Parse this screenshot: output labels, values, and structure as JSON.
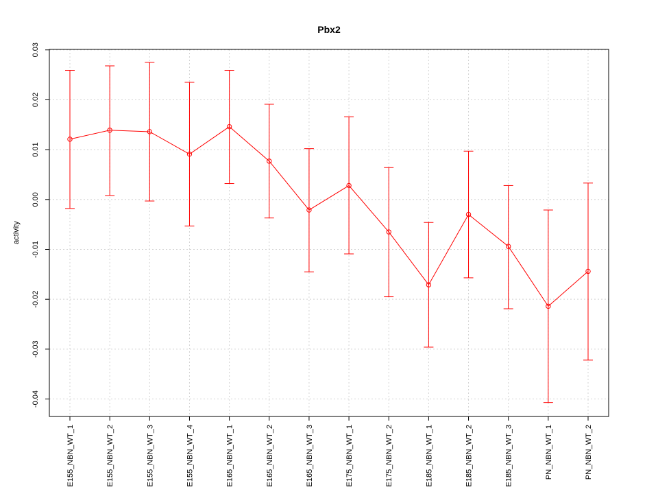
{
  "chart_data": {
    "type": "line",
    "title": "Pbx2",
    "xlabel": "",
    "ylabel": "activity",
    "ylim": [
      -0.0435,
      0.0301
    ],
    "yticks": [
      -0.04,
      -0.03,
      -0.02,
      -0.01,
      0.0,
      0.01,
      0.02,
      0.03
    ],
    "ytick_labels": [
      "-0.04",
      "-0.03",
      "-0.02",
      "-0.01",
      "0.00",
      "0.01",
      "0.02",
      "0.03"
    ],
    "grid": true,
    "legend": "none",
    "categories": [
      "E155_NBN_WT_1",
      "E155_NBN_WT_2",
      "E155_NBN_WT_3",
      "E155_NBN_WT_4",
      "E165_NBN_WT_1",
      "E165_NBN_WT_2",
      "E165_NBN_WT_3",
      "E175_NBN_WT_1",
      "E175_NBN_WT_2",
      "E185_NBN_WT_1",
      "E185_NBN_WT_2",
      "E185_NBN_WT_3",
      "PN_NBN_WT_1",
      "PN_NBN_WT_2"
    ],
    "series": [
      {
        "color": "#ff0000",
        "values": [
          0.0121,
          0.0139,
          0.0136,
          0.0091,
          0.0146,
          0.0077,
          -0.0021,
          0.0028,
          -0.0065,
          -0.0171,
          -0.003,
          -0.0094,
          -0.0214,
          -0.0144
        ],
        "upper": [
          0.0259,
          0.0268,
          0.0275,
          0.0235,
          0.0259,
          0.0191,
          0.0102,
          0.0166,
          0.0064,
          -0.0046,
          0.0097,
          0.0028,
          -0.0021,
          0.0033
        ],
        "lower": [
          -0.0018,
          0.0008,
          -0.0003,
          -0.0053,
          0.0032,
          -0.0037,
          -0.0145,
          -0.0109,
          -0.0195,
          -0.0296,
          -0.0157,
          -0.0219,
          -0.0407,
          -0.0322
        ]
      }
    ]
  }
}
